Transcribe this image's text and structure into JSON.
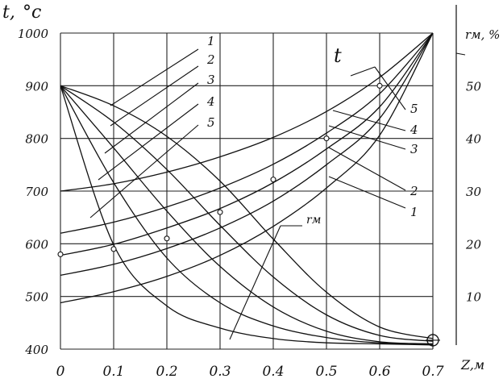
{
  "chart_data": {
    "type": "line",
    "title": "",
    "left_axis": {
      "label_main": "t,",
      "label_unit": "°c",
      "range": [
        400,
        1000
      ],
      "ticks": [
        "400",
        "500",
        "600",
        "700",
        "800",
        "900",
        "1000"
      ]
    },
    "right_axis": {
      "label": "rм, %",
      "range": [
        0,
        60
      ],
      "ticks": [
        "10",
        "20",
        "30",
        "40",
        "50"
      ]
    },
    "x_axis": {
      "label": "Z,м",
      "range": [
        0,
        0.7
      ],
      "ticks": [
        "0",
        "0.1",
        "0.2",
        "0.3",
        "0.4",
        "0.5",
        "0.6",
        "0.7"
      ]
    },
    "grid": true,
    "group_labels": {
      "temperature": "t",
      "reduction": "rм"
    },
    "series": [
      {
        "name": "1",
        "group": "t",
        "x": [
          0,
          0.1,
          0.2,
          0.3,
          0.4,
          0.5,
          0.6,
          0.7
        ],
        "y": [
          488,
          509,
          538,
          578,
          633,
          706,
          806,
          1000
        ]
      },
      {
        "name": "2",
        "group": "t",
        "x": [
          0,
          0.1,
          0.2,
          0.3,
          0.4,
          0.5,
          0.6,
          0.7
        ],
        "y": [
          540,
          561,
          591,
          630,
          681,
          750,
          838,
          1000
        ]
      },
      {
        "name": "3",
        "group": "t",
        "x": [
          0,
          0.1,
          0.2,
          0.3,
          0.4,
          0.5,
          0.6,
          0.7
        ],
        "y": [
          578,
          599,
          630,
          667,
          716,
          780,
          860,
          1000
        ]
      },
      {
        "name": "4",
        "group": "t",
        "x": [
          0,
          0.1,
          0.2,
          0.3,
          0.4,
          0.5,
          0.6,
          0.7
        ],
        "y": [
          620,
          641,
          670,
          706,
          751,
          810,
          885,
          1000
        ]
      },
      {
        "name": "5",
        "group": "t",
        "x": [
          0,
          0.1,
          0.2,
          0.3,
          0.4,
          0.5,
          0.6,
          0.7
        ],
        "y": [
          700,
          714,
          736,
          765,
          802,
          851,
          916,
          1000
        ]
      },
      {
        "name": "1",
        "group": "rм",
        "x": [
          0,
          0.1,
          0.2,
          0.3,
          0.4,
          0.5,
          0.6,
          0.7
        ],
        "y": [
          900,
          862,
          804,
          719,
          609,
          508,
          442,
          420
        ]
      },
      {
        "name": "2",
        "group": "rм",
        "x": [
          0,
          0.1,
          0.2,
          0.3,
          0.4,
          0.5,
          0.6,
          0.7
        ],
        "y": [
          900,
          831,
          741,
          635,
          537,
          465,
          426,
          415
        ]
      },
      {
        "name": "3",
        "group": "rм",
        "x": [
          0,
          0.1,
          0.2,
          0.3,
          0.4,
          0.5,
          0.6,
          0.7
        ],
        "y": [
          900,
          782,
          662,
          557,
          480,
          434,
          414,
          410
        ]
      },
      {
        "name": "4",
        "group": "rм",
        "x": [
          0,
          0.1,
          0.2,
          0.3,
          0.4,
          0.5,
          0.6,
          0.7
        ],
        "y": [
          900,
          716,
          573,
          488,
          444,
          422,
          412,
          410
        ]
      },
      {
        "name": "5",
        "group": "rм",
        "x": [
          0,
          0.1,
          0.2,
          0.3,
          0.4,
          0.5,
          0.6,
          0.7
        ],
        "y": [
          900,
          598,
          482,
          440,
          420,
          412,
          410,
          408
        ]
      }
    ],
    "measured_points": {
      "x": [
        0,
        0.1,
        0.2,
        0.3,
        0.4,
        0.5,
        0.6
      ],
      "y": [
        580,
        590,
        610,
        660,
        722,
        800,
        900
      ]
    },
    "end_marker": {
      "x": 0.7,
      "y": 420
    }
  }
}
